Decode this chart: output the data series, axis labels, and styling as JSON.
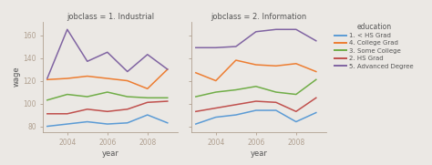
{
  "years": [
    2003,
    2004,
    2005,
    2006,
    2007,
    2008,
    2009
  ],
  "industrial": {
    "1_hs_grad": [
      80,
      82,
      84,
      82,
      83,
      90,
      83
    ],
    "4_college_grad": [
      121,
      122,
      124,
      122,
      120,
      113,
      130
    ],
    "3_some_college": [
      103,
      108,
      106,
      110,
      106,
      105,
      105
    ],
    "2_hs_grad": [
      91,
      91,
      95,
      93,
      95,
      101,
      102
    ],
    "5_advanced": [
      122,
      165,
      137,
      145,
      128,
      143,
      130
    ]
  },
  "information": {
    "1_hs_grad": [
      82,
      88,
      90,
      94,
      94,
      84,
      92
    ],
    "4_college_grad": [
      127,
      120,
      138,
      134,
      133,
      135,
      128
    ],
    "3_some_college": [
      106,
      110,
      112,
      115,
      110,
      108,
      121
    ],
    "2_hs_grad": [
      93,
      96,
      99,
      102,
      101,
      93,
      105
    ],
    "5_advanced": [
      149,
      149,
      150,
      163,
      165,
      165,
      155
    ]
  },
  "colors": {
    "1_hs_grad": "#5b9bd5",
    "4_college_grad": "#ed7d31",
    "3_some_college": "#70ad47",
    "2_hs_grad": "#c0504d",
    "5_advanced": "#8064a2"
  },
  "labels": {
    "1_hs_grad": "1. < HS Grad",
    "4_college_grad": "4. College Grad",
    "3_some_college": "3. Some College",
    "2_hs_grad": "2. HS Grad",
    "5_advanced": "5. Advanced Degree"
  },
  "ylim": [
    75,
    172
  ],
  "yticks": [
    80,
    100,
    120,
    140,
    160
  ],
  "xticks": [
    2004,
    2006,
    2008
  ],
  "xlim": [
    2002.8,
    2009.5
  ],
  "title1": "jobclass = 1. Industrial",
  "title2": "jobclass = 2. Information",
  "xlabel": "year",
  "ylabel": "wage",
  "legend_title": "education",
  "bg_color": "#ebe8e4",
  "spine_color": "#b0a090",
  "text_color": "#555555"
}
